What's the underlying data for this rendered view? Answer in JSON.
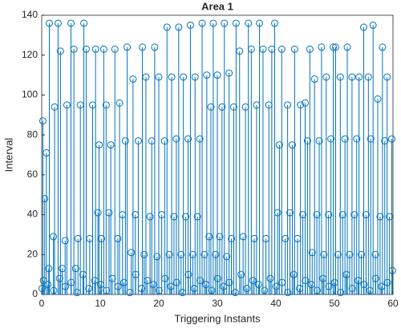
{
  "chart_data": {
    "type": "stem",
    "title": "Area 1",
    "x_label": "Triggering Instants",
    "y_label": "Interval",
    "color": "#0072bd",
    "xlim": [
      0,
      60
    ],
    "ylim": [
      0,
      140
    ],
    "xticks": [
      0,
      10,
      20,
      30,
      40,
      50,
      60
    ],
    "yticks": [
      0,
      20,
      40,
      60,
      80,
      100,
      120,
      140
    ],
    "x": [
      0.2,
      0.3,
      0.5,
      0.8,
      1.2,
      1.3,
      2,
      2.2,
      2.8,
      3.2,
      3.5,
      4,
      4.3,
      5,
      5.5,
      5.8,
      6.2,
      6.6,
      7.2,
      7.6,
      8.2,
      8.7,
      9.2,
      9.6,
      9.8,
      10.2,
      10.6,
      11,
      11.5,
      11.8,
      12.5,
      13,
      13.3,
      13.8,
      14.3,
      14.6,
      15.3,
      15.6,
      16,
      16.5,
      17.2,
      17.5,
      17.8,
      18.5,
      18.8,
      19.3,
      19.7,
      20,
      20.5,
      21,
      21.4,
      21.8,
      22.2,
      22.6,
      23,
      23.4,
      23.8,
      24.2,
      24.6,
      25,
      25.4,
      25.8,
      26.2,
      26.6,
      27,
      27.4,
      27.8,
      28.2,
      28.6,
      28.9,
      29.3,
      29.7,
      30,
      30.4,
      30.8,
      31.2,
      31.6,
      32,
      32.4,
      32.8,
      33.2,
      33.8,
      34.4,
      34.8,
      35.3,
      35.8,
      36.3,
      36.7,
      37.2,
      37.8,
      38.3,
      38.8,
      39.3,
      39.8,
      40.3,
      40.6,
      41,
      41.6,
      42,
      42.4,
      42.8,
      43.2,
      43.7,
      44.2,
      44.6,
      45,
      45.4,
      45.8,
      46.2,
      46.6,
      47,
      47.4,
      47.8,
      48.2,
      48.6,
      49,
      49.4,
      49.8,
      50.2,
      50.6,
      51,
      51.4,
      51.8,
      52.2,
      52.6,
      53,
      53.4,
      53.8,
      54.2,
      54.6,
      55,
      55.4,
      55.8,
      56.2,
      56.6,
      57,
      57.4,
      57.8,
      58.2,
      58.6,
      59,
      59.4,
      59.8,
      59.9,
      0.05,
      1.05,
      2.05,
      3.05,
      4.05,
      5.05,
      6.05,
      7.05,
      8.05,
      9.05,
      10.05,
      11.05,
      12.05,
      13.05,
      14.05,
      15.05,
      16.05,
      17.05,
      18.05,
      19.05,
      20.05,
      21.05,
      22.05,
      23.05,
      24.05,
      25.05,
      26.05,
      27.05,
      28.05,
      29.05,
      30.05,
      31.05,
      32.05,
      33.05,
      34.05,
      35.05,
      36.05,
      37.05,
      38.05,
      39.05,
      40.05,
      41.05,
      42.05,
      43.05,
      44.05,
      45.05,
      46.05,
      47.05,
      48.05,
      49.05,
      50.05,
      51.05,
      52.05,
      53.05,
      54.05,
      55.05,
      56.05,
      57.05,
      58.05,
      59.05
    ],
    "values": [
      87,
      7,
      48,
      71,
      13,
      136,
      29,
      94,
      136,
      122,
      13,
      27,
      95,
      136,
      123,
      13,
      28,
      95,
      136,
      123,
      28,
      95,
      123,
      41,
      75,
      28,
      123,
      95,
      41,
      75,
      123,
      28,
      96,
      40,
      77,
      124,
      21,
      108,
      40,
      77,
      124,
      20,
      109,
      39,
      77,
      124,
      19,
      109,
      40,
      77,
      134,
      20,
      109,
      39,
      78,
      134,
      20,
      109,
      39,
      78,
      135,
      20,
      109,
      39,
      78,
      136,
      20,
      110,
      29,
      94,
      136,
      20,
      110,
      29,
      94,
      136,
      19,
      111,
      28,
      94,
      136,
      122,
      29,
      94,
      136,
      123,
      28,
      95,
      136,
      123,
      28,
      95,
      123,
      136,
      41,
      75,
      123,
      28,
      95,
      41,
      75,
      123,
      28,
      95,
      40,
      96,
      77,
      123,
      21,
      108,
      40,
      77,
      124,
      20,
      109,
      40,
      78,
      124,
      124,
      20,
      109,
      40,
      78,
      124,
      20,
      109,
      40,
      78,
      109,
      20,
      134,
      40,
      109,
      78,
      135,
      20,
      98,
      39,
      124,
      77,
      109,
      39,
      78,
      12,
      3,
      5,
      2,
      8,
      4,
      6,
      1,
      10,
      3,
      7,
      5,
      2,
      8,
      4,
      6,
      1,
      10,
      3,
      7,
      5,
      2,
      8,
      4,
      6,
      1,
      10,
      3,
      7,
      5,
      2,
      8,
      4,
      6,
      1,
      10,
      3,
      7,
      5,
      2,
      8,
      4,
      6,
      1,
      10,
      3,
      7,
      5,
      2,
      8,
      4,
      6,
      1,
      10,
      3,
      7,
      5,
      2,
      8,
      4,
      6
    ]
  }
}
